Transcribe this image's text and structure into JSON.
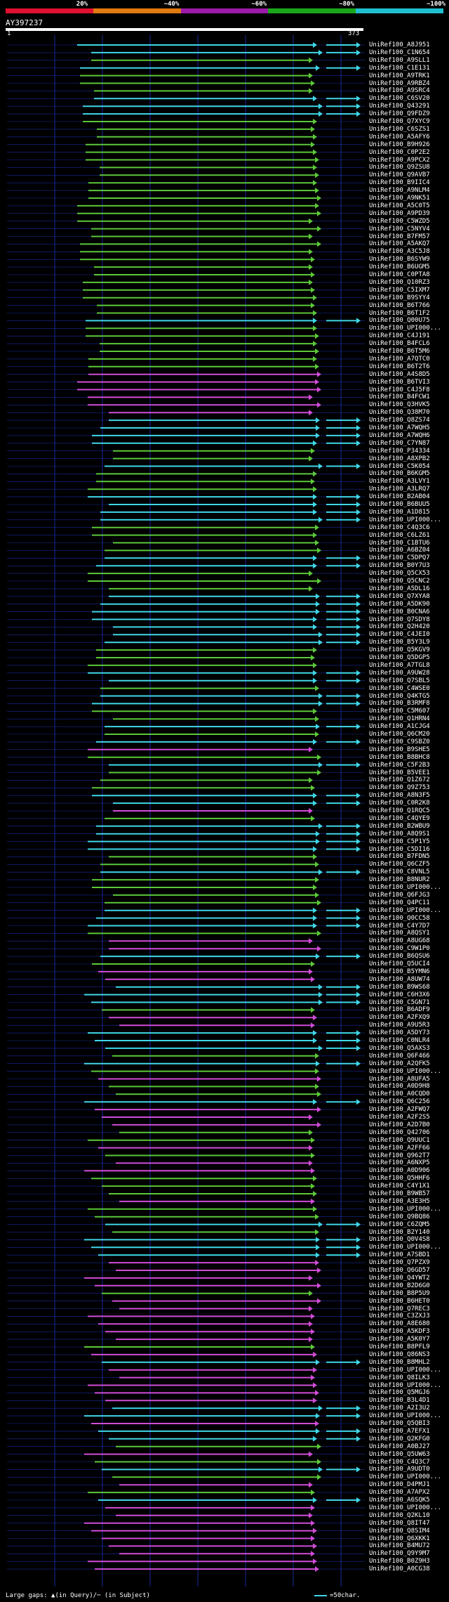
{
  "legend": {
    "segments": [
      {
        "label": "20%",
        "color": "#e01030"
      },
      {
        "label": "~40%",
        "color": "#e07a10"
      },
      {
        "label": "~60%",
        "color": "#9c1aa8"
      },
      {
        "label": "~80%",
        "color": "#1aa81a"
      },
      {
        "label": "~100%",
        "color": "#20c0d0"
      }
    ]
  },
  "query": {
    "id": "AY397237",
    "start": "1",
    "end": "373"
  },
  "footer": {
    "gaps_text": "Large gaps: ▲(in Query)/─ (in Subject)",
    "scale_text": "=50char."
  },
  "colors": {
    "cyan": "#3fd7e8",
    "green": "#5cc83a",
    "magenta": "#d04cd8",
    "blue_grid": "#1a2a9a"
  },
  "hits": [
    {
      "id": "UniRef100_A8J951",
      "color": "cyan"
    },
    {
      "id": "UniRef100_C1N654",
      "color": "cyan"
    },
    {
      "id": "UniRef100_A9SLL1",
      "color": "green"
    },
    {
      "id": "UniRef100_C1E131",
      "color": "cyan"
    },
    {
      "id": "UniRef100_A9TRK1",
      "color": "green"
    },
    {
      "id": "UniRef100_A9RBZ4",
      "color": "green"
    },
    {
      "id": "UniRef100_A9SRC4",
      "color": "green"
    },
    {
      "id": "UniRef100_C6SV20",
      "color": "cyan"
    },
    {
      "id": "UniRef100_Q43291",
      "color": "cyan"
    },
    {
      "id": "UniRef100_Q9FDZ9",
      "color": "cyan"
    },
    {
      "id": "UniRef100_Q7XYC9",
      "color": "green"
    },
    {
      "id": "UniRef100_C6SZS1",
      "color": "green"
    },
    {
      "id": "UniRef100_A5AFY6",
      "color": "green"
    },
    {
      "id": "UniRef100_B9H926",
      "color": "green"
    },
    {
      "id": "UniRef100_C0P2E2",
      "color": "green"
    },
    {
      "id": "UniRef100_A9PCX2",
      "color": "green"
    },
    {
      "id": "UniRef100_Q9ZSU8",
      "color": "green"
    },
    {
      "id": "UniRef100_Q9AVB7",
      "color": "green"
    },
    {
      "id": "UniRef100_B9IIC4",
      "color": "green"
    },
    {
      "id": "UniRef100_A9NLM4",
      "color": "green"
    },
    {
      "id": "UniRef100_A9NK51",
      "color": "green"
    },
    {
      "id": "UniRef100_A5C0T5",
      "color": "green"
    },
    {
      "id": "UniRef100_A9PD39",
      "color": "green"
    },
    {
      "id": "UniRef100_C5WZD5",
      "color": "green"
    },
    {
      "id": "UniRef100_C5NYV4",
      "color": "green"
    },
    {
      "id": "UniRef100_B7FM57",
      "color": "green"
    },
    {
      "id": "UniRef100_A5AKQ7",
      "color": "green"
    },
    {
      "id": "UniRef100_A3C5J8",
      "color": "green"
    },
    {
      "id": "UniRef100_B6SYW9",
      "color": "green"
    },
    {
      "id": "UniRef100_B6UGM5",
      "color": "green"
    },
    {
      "id": "UniRef100_C0PTA8",
      "color": "green"
    },
    {
      "id": "UniRef100_Q10RZ3",
      "color": "green"
    },
    {
      "id": "UniRef100_C5IXM7",
      "color": "green"
    },
    {
      "id": "UniRef100_B9SYY4",
      "color": "green"
    },
    {
      "id": "UniRef100_B6T766",
      "color": "green"
    },
    {
      "id": "UniRef100_B6T1F2",
      "color": "green"
    },
    {
      "id": "UniRef100_Q00U75",
      "color": "cyan"
    },
    {
      "id": "UniRef100_UPI000...",
      "color": "green"
    },
    {
      "id": "UniRef100_C4J191",
      "color": "green"
    },
    {
      "id": "UniRef100_B4FCL6",
      "color": "green"
    },
    {
      "id": "UniRef100_B6T5M6",
      "color": "green"
    },
    {
      "id": "UniRef100_A7QTC0",
      "color": "green"
    },
    {
      "id": "UniRef100_B6T2T6",
      "color": "green"
    },
    {
      "id": "UniRef100_A4S8D5",
      "color": "magenta"
    },
    {
      "id": "UniRef100_B6TVI3",
      "color": "magenta"
    },
    {
      "id": "UniRef100_C4J5F8",
      "color": "magenta"
    },
    {
      "id": "UniRef100_B4FCW1",
      "color": "magenta"
    },
    {
      "id": "UniRef100_Q3HVK5",
      "color": "magenta"
    },
    {
      "id": "UniRef100_Q38M70",
      "color": "magenta"
    },
    {
      "id": "UniRef100_Q8ZS74",
      "color": "cyan"
    },
    {
      "id": "UniRef100_A7WQH5",
      "color": "cyan"
    },
    {
      "id": "UniRef100_A7WQH6",
      "color": "cyan"
    },
    {
      "id": "UniRef100_C7YN87",
      "color": "cyan"
    },
    {
      "id": "UniRef100_P34334",
      "color": "green"
    },
    {
      "id": "UniRef100_A8XPB2",
      "color": "green"
    },
    {
      "id": "UniRef100_C5K054",
      "color": "cyan"
    },
    {
      "id": "UniRef100_B6KGM5",
      "color": "green"
    },
    {
      "id": "UniRef100_A3LVY1",
      "color": "green"
    },
    {
      "id": "UniRef100_A3LRQ7",
      "color": "green"
    },
    {
      "id": "UniRef100_B2AB04",
      "color": "cyan"
    },
    {
      "id": "UniRef100_B6BUU5",
      "color": "cyan"
    },
    {
      "id": "UniRef100_A1D815",
      "color": "cyan"
    },
    {
      "id": "UniRef100_UPI000...",
      "color": "cyan"
    },
    {
      "id": "UniRef100_C4Q3C6",
      "color": "green"
    },
    {
      "id": "UniRef100_C6LZ61",
      "color": "green"
    },
    {
      "id": "UniRef100_C1BTU6",
      "color": "green"
    },
    {
      "id": "UniRef100_A6BZ04",
      "color": "green"
    },
    {
      "id": "UniRef100_C5DPQ7",
      "color": "cyan"
    },
    {
      "id": "UniRef100_B0Y7U3",
      "color": "cyan"
    },
    {
      "id": "UniRef100_Q5CX53",
      "color": "green"
    },
    {
      "id": "UniRef100_Q5CNC2",
      "color": "green"
    },
    {
      "id": "UniRef100_A5DL16",
      "color": "green"
    },
    {
      "id": "UniRef100_Q7XYA8",
      "color": "cyan"
    },
    {
      "id": "UniRef100_A5DK90",
      "color": "cyan"
    },
    {
      "id": "UniRef100_B0CNA6",
      "color": "cyan"
    },
    {
      "id": "UniRef100_Q7SDY8",
      "color": "cyan"
    },
    {
      "id": "UniRef100_Q2H420",
      "color": "cyan"
    },
    {
      "id": "UniRef100_C4JEI0",
      "color": "cyan"
    },
    {
      "id": "UniRef100_B5Y3L9",
      "color": "cyan"
    },
    {
      "id": "UniRef100_Q5KGV9",
      "color": "green"
    },
    {
      "id": "UniRef100_Q5DGP5",
      "color": "green"
    },
    {
      "id": "UniRef100_A7TGL8",
      "color": "green"
    },
    {
      "id": "UniRef100_A9UW28",
      "color": "cyan"
    },
    {
      "id": "UniRef100_Q7SBL5",
      "color": "cyan"
    },
    {
      "id": "UniRef100_C4WSE0",
      "color": "green"
    },
    {
      "id": "UniRef100_Q4KTG5",
      "color": "cyan"
    },
    {
      "id": "UniRef100_B3RMF8",
      "color": "cyan"
    },
    {
      "id": "UniRef100_C5M607",
      "color": "green"
    },
    {
      "id": "UniRef100_Q1HRN4",
      "color": "green"
    },
    {
      "id": "UniRef100_A1CJG4",
      "color": "cyan"
    },
    {
      "id": "UniRef100_Q6CM20",
      "color": "green"
    },
    {
      "id": "UniRef100_C9SBZ0",
      "color": "cyan"
    },
    {
      "id": "UniRef100_B9SHE5",
      "color": "magenta"
    },
    {
      "id": "UniRef100_B8BHC8",
      "color": "green"
    },
    {
      "id": "UniRef100_C5F2B3",
      "color": "cyan"
    },
    {
      "id": "UniRef100_B5VEE1",
      "color": "green"
    },
    {
      "id": "UniRef100_Q1Z672",
      "color": "green"
    },
    {
      "id": "UniRef100_Q9Z753",
      "color": "green"
    },
    {
      "id": "UniRef100_A8N3F5",
      "color": "cyan"
    },
    {
      "id": "UniRef100_C0R2K8",
      "color": "cyan"
    },
    {
      "id": "UniRef100_Q1RQC5",
      "color": "magenta"
    },
    {
      "id": "UniRef100_C4QYE9",
      "color": "green"
    },
    {
      "id": "UniRef100_B2WBU9",
      "color": "cyan"
    },
    {
      "id": "UniRef100_A8Q9S1",
      "color": "cyan"
    },
    {
      "id": "UniRef100_C5P1Y5",
      "color": "cyan"
    },
    {
      "id": "UniRef100_C5DI16",
      "color": "cyan"
    },
    {
      "id": "UniRef100_B7FDN5",
      "color": "green"
    },
    {
      "id": "UniRef100_Q6CZF5",
      "color": "green"
    },
    {
      "id": "UniRef100_C8VNL5",
      "color": "cyan"
    },
    {
      "id": "UniRef100_B8NUR2",
      "color": "green"
    },
    {
      "id": "UniRef100_UPI000...",
      "color": "green"
    },
    {
      "id": "UniRef100_Q6FJG3",
      "color": "green"
    },
    {
      "id": "UniRef100_Q4PC11",
      "color": "green"
    },
    {
      "id": "UniRef100_UPI000...",
      "color": "cyan"
    },
    {
      "id": "UniRef100_Q0CC58",
      "color": "cyan"
    },
    {
      "id": "UniRef100_C4Y7D7",
      "color": "cyan"
    },
    {
      "id": "UniRef100_A8QSY1",
      "color": "green"
    },
    {
      "id": "UniRef100_A8UG68",
      "color": "magenta"
    },
    {
      "id": "UniRef100_C9W1P0",
      "color": "magenta"
    },
    {
      "id": "UniRef100_B6QSU6",
      "color": "cyan"
    },
    {
      "id": "UniRef100_Q5UCI4",
      "color": "green"
    },
    {
      "id": "UniRef100_B5YMN6",
      "color": "magenta"
    },
    {
      "id": "UniRef100_A8UW74",
      "color": "magenta"
    },
    {
      "id": "UniRef100_B9WS68",
      "color": "cyan"
    },
    {
      "id": "UniRef100_C6H3X6",
      "color": "cyan"
    },
    {
      "id": "UniRef100_C5GN71",
      "color": "cyan"
    },
    {
      "id": "UniRef100_B6ADF9",
      "color": "green"
    },
    {
      "id": "UniRef100_A2FXQ9",
      "color": "magenta"
    },
    {
      "id": "UniRef100_A9U5R3",
      "color": "magenta"
    },
    {
      "id": "UniRef100_A5DY73",
      "color": "cyan"
    },
    {
      "id": "UniRef100_C0NLR4",
      "color": "cyan"
    },
    {
      "id": "UniRef100_Q5AXS3",
      "color": "cyan"
    },
    {
      "id": "UniRef100_Q6F466",
      "color": "green"
    },
    {
      "id": "UniRef100_A2QFK5",
      "color": "cyan"
    },
    {
      "id": "UniRef100_UPI000...",
      "color": "green"
    },
    {
      "id": "UniRef100_A8UFA5",
      "color": "magenta"
    },
    {
      "id": "UniRef100_A0D9H8",
      "color": "green"
    },
    {
      "id": "UniRef100_A0CQD0",
      "color": "green"
    },
    {
      "id": "UniRef100_Q6C256",
      "color": "cyan"
    },
    {
      "id": "UniRef100_A2FWQ7",
      "color": "magenta"
    },
    {
      "id": "UniRef100_A2F2S5",
      "color": "magenta"
    },
    {
      "id": "UniRef100_A2D7B0",
      "color": "magenta"
    },
    {
      "id": "UniRef100_Q42706",
      "color": "green"
    },
    {
      "id": "UniRef100_Q9UUC1",
      "color": "green"
    },
    {
      "id": "UniRef100_A2FF66",
      "color": "magenta"
    },
    {
      "id": "UniRef100_Q962T7",
      "color": "green"
    },
    {
      "id": "UniRef100_A6NXP5",
      "color": "magenta"
    },
    {
      "id": "UniRef100_A0D906",
      "color": "magenta"
    },
    {
      "id": "UniRef100_Q5HHF6",
      "color": "green"
    },
    {
      "id": "UniRef100_C4Y1X1",
      "color": "green"
    },
    {
      "id": "UniRef100_B9WB57",
      "color": "green"
    },
    {
      "id": "UniRef100_A3E3H5",
      "color": "magenta"
    },
    {
      "id": "UniRef100_UPI000...",
      "color": "green"
    },
    {
      "id": "UniRef100_Q9BQ86",
      "color": "green"
    },
    {
      "id": "UniRef100_C6ZQM5",
      "color": "cyan"
    },
    {
      "id": "UniRef100_B2Y140",
      "color": "green"
    },
    {
      "id": "UniRef100_Q0V4S8",
      "color": "cyan"
    },
    {
      "id": "UniRef100_UPI000...",
      "color": "cyan"
    },
    {
      "id": "UniRef100_A7SBD1",
      "color": "cyan"
    },
    {
      "id": "UniRef100_Q7PZX9",
      "color": "magenta"
    },
    {
      "id": "UniRef100_Q6GD57",
      "color": "magenta"
    },
    {
      "id": "UniRef100_Q4YWT2",
      "color": "magenta"
    },
    {
      "id": "UniRef100_B2D6G0",
      "color": "magenta"
    },
    {
      "id": "UniRef100_B8P5U9",
      "color": "green"
    },
    {
      "id": "UniRef100_B6HET0",
      "color": "magenta"
    },
    {
      "id": "UniRef100_Q7REC3",
      "color": "magenta"
    },
    {
      "id": "UniRef100_C3ZXJ3",
      "color": "magenta"
    },
    {
      "id": "UniRef100_A8E680",
      "color": "magenta"
    },
    {
      "id": "UniRef100_A5KDF3",
      "color": "magenta"
    },
    {
      "id": "UniRef100_A5K0Y7",
      "color": "magenta"
    },
    {
      "id": "UniRef100_B8PFL9",
      "color": "green"
    },
    {
      "id": "UniRef100_Q86NS3",
      "color": "magenta"
    },
    {
      "id": "UniRef100_B8MHL2",
      "color": "cyan"
    },
    {
      "id": "UniRef100_UPI000...",
      "color": "magenta"
    },
    {
      "id": "UniRef100_Q8ILK3",
      "color": "magenta"
    },
    {
      "id": "UniRef100_UPI000...",
      "color": "magenta"
    },
    {
      "id": "UniRef100_Q5MGJ6",
      "color": "magenta"
    },
    {
      "id": "UniRef100_B3L4D1",
      "color": "magenta"
    },
    {
      "id": "UniRef100_A2I3U2",
      "color": "cyan"
    },
    {
      "id": "UniRef100_UPI000...",
      "color": "cyan"
    },
    {
      "id": "UniRef100_Q5QBI3",
      "color": "magenta"
    },
    {
      "id": "UniRef100_A7EFX1",
      "color": "cyan"
    },
    {
      "id": "UniRef100_Q2KFG0",
      "color": "cyan"
    },
    {
      "id": "UniRef100_A0BJ27",
      "color": "green"
    },
    {
      "id": "UniRef100_Q5UW63",
      "color": "magenta"
    },
    {
      "id": "UniRef100_C4Q3C7",
      "color": "green"
    },
    {
      "id": "UniRef100_A9UDT0",
      "color": "cyan"
    },
    {
      "id": "UniRef100_UPI000...",
      "color": "green"
    },
    {
      "id": "UniRef100_D4PMJ1",
      "color": "magenta"
    },
    {
      "id": "UniRef100_A7APX2",
      "color": "green"
    },
    {
      "id": "UniRef100_A6SQK5",
      "color": "cyan"
    },
    {
      "id": "UniRef100_UPI000...",
      "color": "magenta"
    },
    {
      "id": "UniRef100_Q2KL10",
      "color": "magenta"
    },
    {
      "id": "UniRef100_Q8IT47",
      "color": "magenta"
    },
    {
      "id": "UniRef100_Q8SIM4",
      "color": "magenta"
    },
    {
      "id": "UniRef100_Q6XKK1",
      "color": "magenta"
    },
    {
      "id": "UniRef100_B4MU72",
      "color": "magenta"
    },
    {
      "id": "UniRef100_Q9Y9M7",
      "color": "magenta"
    },
    {
      "id": "UniRef100_B0Z9H3",
      "color": "magenta"
    },
    {
      "id": "UniRef100_A0CG38",
      "color": "magenta"
    }
  ]
}
